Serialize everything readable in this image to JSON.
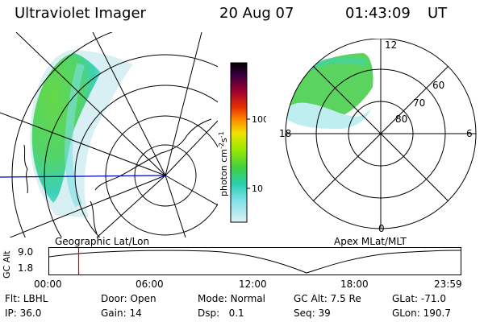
{
  "header": {
    "instrument": "Ultraviolet Imager",
    "date": "20 Aug 07",
    "time": "01:43:09",
    "tz": "UT"
  },
  "colorbar": {
    "label": "photon cm",
    "label_sup1": "-2",
    "label_mid": "s",
    "label_sup2": "-1",
    "ticks": [
      "100",
      "10"
    ],
    "colors": [
      "#000000",
      "#2a0030",
      "#5a0050",
      "#8a0040",
      "#c00020",
      "#e03000",
      "#ff7a00",
      "#ffb000",
      "#f0e000",
      "#bff000",
      "#7ee000",
      "#40d040",
      "#20c8a0",
      "#40d8d8",
      "#a0e8f0",
      "#d8f0f4"
    ]
  },
  "left_panel": {
    "caption": "Geographic Lat/Lon"
  },
  "right_panel": {
    "caption": "Apex MLat/MLT",
    "lat_labels": [
      "60",
      "70",
      "80"
    ],
    "mlt_labels": {
      "top": "12",
      "left": "18",
      "right": "6",
      "bottom": "0"
    }
  },
  "altitude_strip": {
    "ylabel": "GC Alt",
    "ymax": "9.0",
    "ymin": "1.8",
    "xticks": [
      "00:00",
      "06:00",
      "12:00",
      "18:00",
      "23:59"
    ],
    "current_time_fraction": 0.0716
  },
  "status": {
    "filter_label": "Flt:",
    "filter_value": "LBHL",
    "ip_label": "IP:",
    "ip_value": "36.0",
    "door_label": "Door:",
    "door_value": "Open",
    "gain_label": "Gain:",
    "gain_value": "14",
    "mode_label": "Mode:",
    "mode_value": "Normal",
    "dsp_label": "Dsp:",
    "dsp_value": "0.1",
    "gcalt_label": "GC Alt:",
    "gcalt_value": "7.5 Re",
    "seq_label": "Seq:",
    "seq_value": "39",
    "glat_label": "GLat:",
    "glat_value": "-71.0",
    "glon_label": "GLon:",
    "glon_value": "190.7"
  }
}
